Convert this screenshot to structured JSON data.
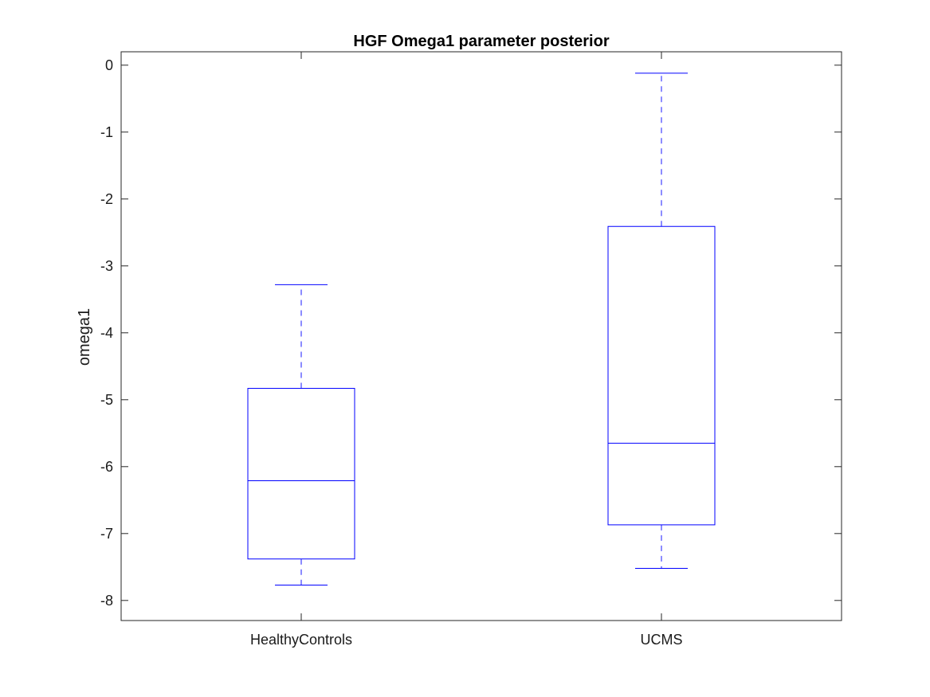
{
  "chart_data": {
    "type": "box",
    "title": "HGF Omega1 parameter posterior",
    "xlabel": "",
    "ylabel": "omega1",
    "ylim": [
      -8.3,
      0.2
    ],
    "yticks": [
      "0",
      "-1",
      "-2",
      "-3",
      "-4",
      "-5",
      "-6",
      "-7",
      "-8"
    ],
    "ytick_values": [
      0,
      -1,
      -2,
      -3,
      -4,
      -5,
      -6,
      -7,
      -8
    ],
    "categories": [
      "HealthyControls",
      "UCMS"
    ],
    "boxes": [
      {
        "category": "HealthyControls",
        "whisker_low": -7.77,
        "q1": -7.38,
        "median": -6.21,
        "q3": -4.83,
        "whisker_high": -3.28
      },
      {
        "category": "UCMS",
        "whisker_low": -7.52,
        "q1": -6.87,
        "median": -5.65,
        "q3": -2.41,
        "whisker_high": -0.12
      }
    ],
    "grid": false,
    "colors": {
      "box": "#0000ff",
      "axes": "#262626"
    }
  }
}
